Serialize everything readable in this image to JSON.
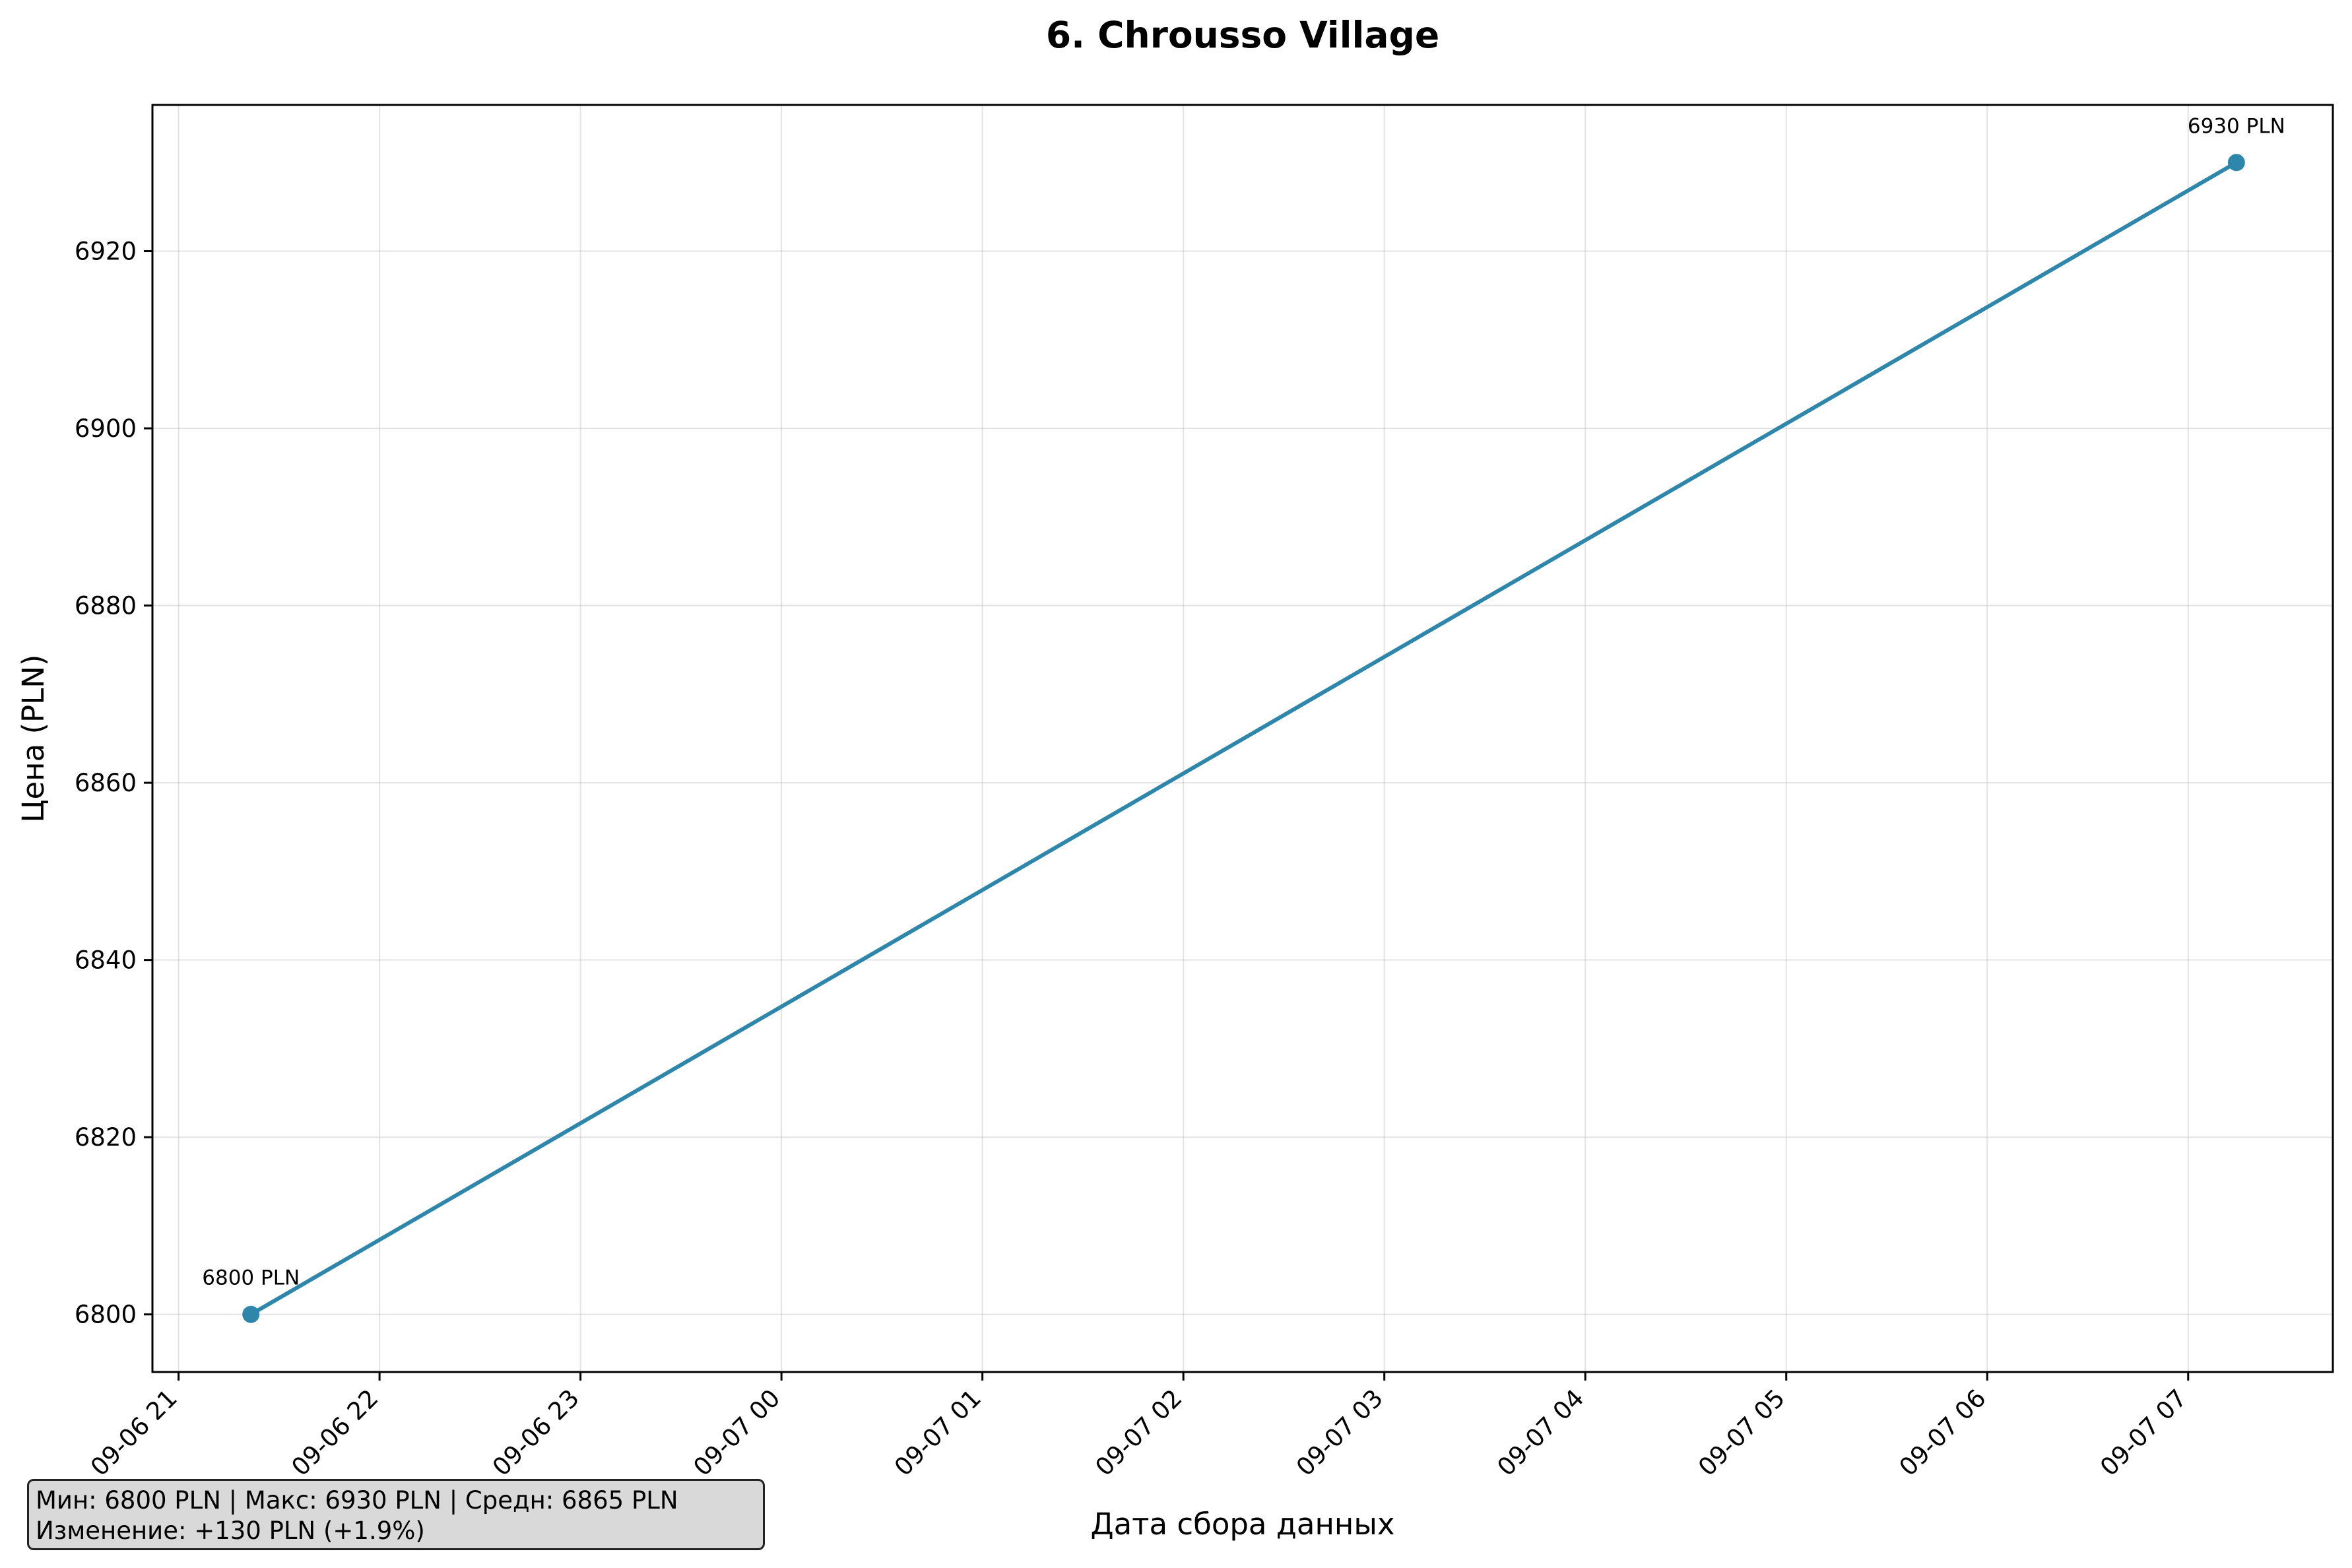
{
  "chart_data": {
    "type": "line",
    "title": "6. Chrousso Village",
    "xlabel": "Дата сбора данных",
    "ylabel": "Цена (PLN)",
    "x_tick_labels": [
      "09-06 21",
      "09-06 22",
      "09-06 23",
      "09-07 00",
      "09-07 01",
      "09-07 02",
      "09-07 03",
      "09-07 04",
      "09-07 05",
      "09-07 06",
      "09-07 07"
    ],
    "x_tick_hours": [
      0,
      1,
      2,
      3,
      4,
      5,
      6,
      7,
      8,
      9,
      10
    ],
    "xlim_hours": [
      -0.13,
      10.72
    ],
    "y_ticks": [
      6800,
      6820,
      6840,
      6860,
      6880,
      6900,
      6920
    ],
    "ylim": [
      6793.5,
      6936.5
    ],
    "grid": true,
    "color": "#2e86ab",
    "series": [
      {
        "x_hours": [
          0.36,
          10.24
        ],
        "values": [
          6800,
          6930
        ],
        "labels": [
          "6800 PLN",
          "6930 PLN"
        ]
      }
    ]
  },
  "stats": {
    "line1": "Мин: 6800 PLN | Макс: 6930 PLN | Средн: 6865 PLN",
    "line2": "Изменение: +130 PLN (+1.9%)"
  }
}
